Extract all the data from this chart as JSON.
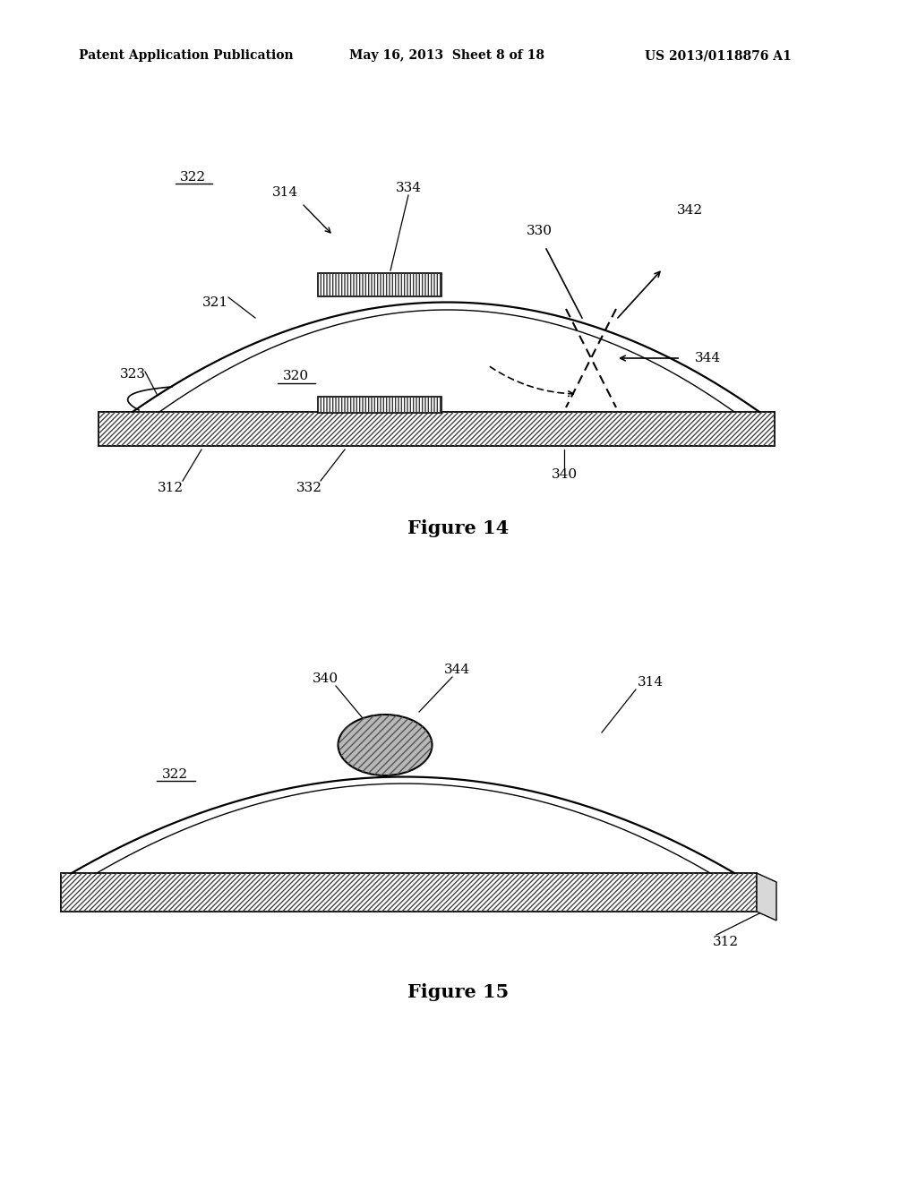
{
  "background_color": "#ffffff",
  "header_text": "Patent Application Publication",
  "header_date": "May 16, 2013  Sheet 8 of 18",
  "header_patent": "US 2013/0118876 A1",
  "fig14_caption": "Figure 14",
  "fig15_caption": "Figure 15",
  "text_color": "#000000",
  "line_color": "#000000",
  "hatch_color": "#555555",
  "gray_fill": "#aaaaaa"
}
